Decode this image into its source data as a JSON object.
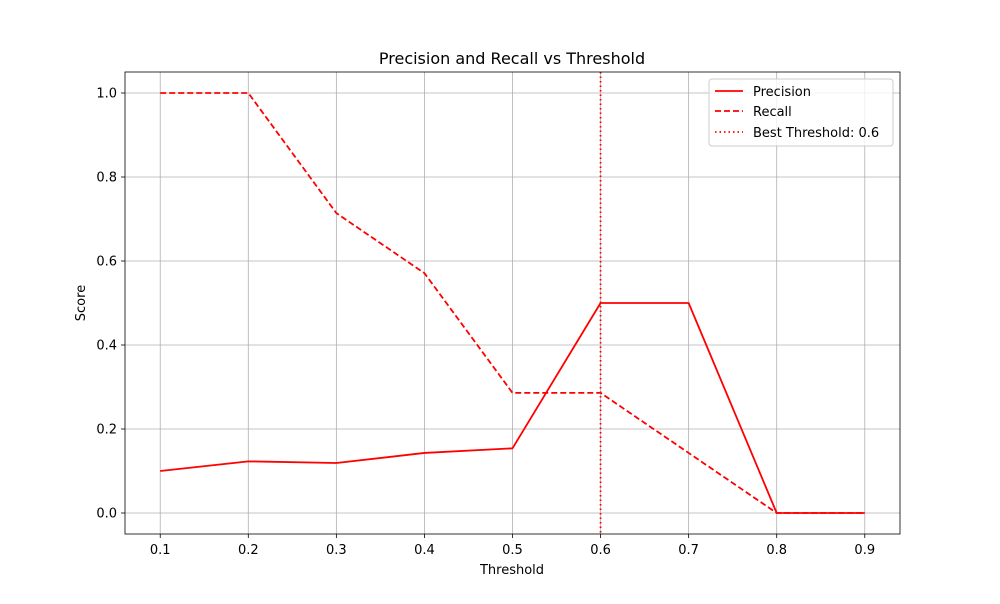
{
  "chart_data": {
    "type": "line",
    "title": "Precision and Recall vs Threshold",
    "xlabel": "Threshold",
    "ylabel": "Score",
    "x": [
      0.1,
      0.2,
      0.3,
      0.4,
      0.5,
      0.6,
      0.7,
      0.8,
      0.9
    ],
    "xlim": [
      0.06,
      0.94
    ],
    "ylim": [
      -0.05,
      1.05
    ],
    "xticks": [
      0.1,
      0.2,
      0.3,
      0.4,
      0.5,
      0.6,
      0.7,
      0.8,
      0.9
    ],
    "xtick_labels": [
      "0.1",
      "0.2",
      "0.3",
      "0.4",
      "0.5",
      "0.6",
      "0.7",
      "0.8",
      "0.9"
    ],
    "yticks": [
      0.0,
      0.2,
      0.4,
      0.6,
      0.8,
      1.0
    ],
    "ytick_labels": [
      "0.0",
      "0.2",
      "0.4",
      "0.6",
      "0.8",
      "1.0"
    ],
    "grid": true,
    "legend_position": "top-right",
    "series": [
      {
        "name": "Precision",
        "style": "solid",
        "color": "#ff0000",
        "values": [
          0.1,
          0.123,
          0.119,
          0.143,
          0.154,
          0.5,
          0.5,
          0.0,
          0.0
        ]
      },
      {
        "name": "Recall",
        "style": "dashed",
        "color": "#ff0000",
        "values": [
          1.0,
          1.0,
          0.714,
          0.571,
          0.286,
          0.286,
          0.143,
          0.0,
          0.0
        ]
      }
    ],
    "vline": {
      "x": 0.6,
      "label": "Best Threshold: 0.6",
      "style": "dotted",
      "color": "#ff0000"
    }
  }
}
